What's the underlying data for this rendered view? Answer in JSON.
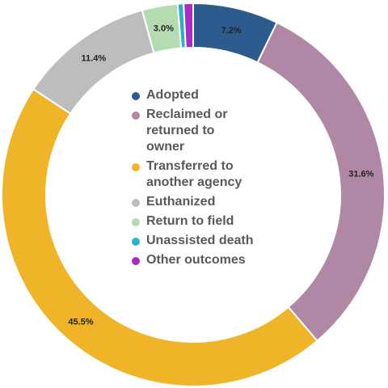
{
  "chart_data": {
    "type": "pie",
    "title": "",
    "donut": true,
    "series": [
      {
        "name": "Adopted",
        "label": "Adopted",
        "value": 7.2,
        "data_label": "7.2%",
        "color": "#2e5b8e"
      },
      {
        "name": "Reclaimed or returned to owner",
        "label": "Reclaimed or\nreturned to\nowner",
        "value": 31.6,
        "data_label": "31.6%",
        "color": "#b087a5"
      },
      {
        "name": "Transferred to another agency",
        "label": "Transferred to\nanother agency",
        "value": 45.5,
        "data_label": "45.5%",
        "color": "#f0b429"
      },
      {
        "name": "Euthanized",
        "label": "Euthanized",
        "value": 11.4,
        "data_label": "11.4%",
        "color": "#bdbdbd"
      },
      {
        "name": "Return to field",
        "label": "Return to field",
        "value": 3.0,
        "data_label": "3.0%",
        "color": "#b5dcb0"
      },
      {
        "name": "Unassisted death",
        "label": "Unassisted death",
        "value": 0.5,
        "data_label": "",
        "color": "#2ab3c6"
      },
      {
        "name": "Other outcomes",
        "label": "Other outcomes",
        "value": 0.8,
        "data_label": "",
        "color": "#a92cc6"
      }
    ],
    "legend_position": "center"
  }
}
